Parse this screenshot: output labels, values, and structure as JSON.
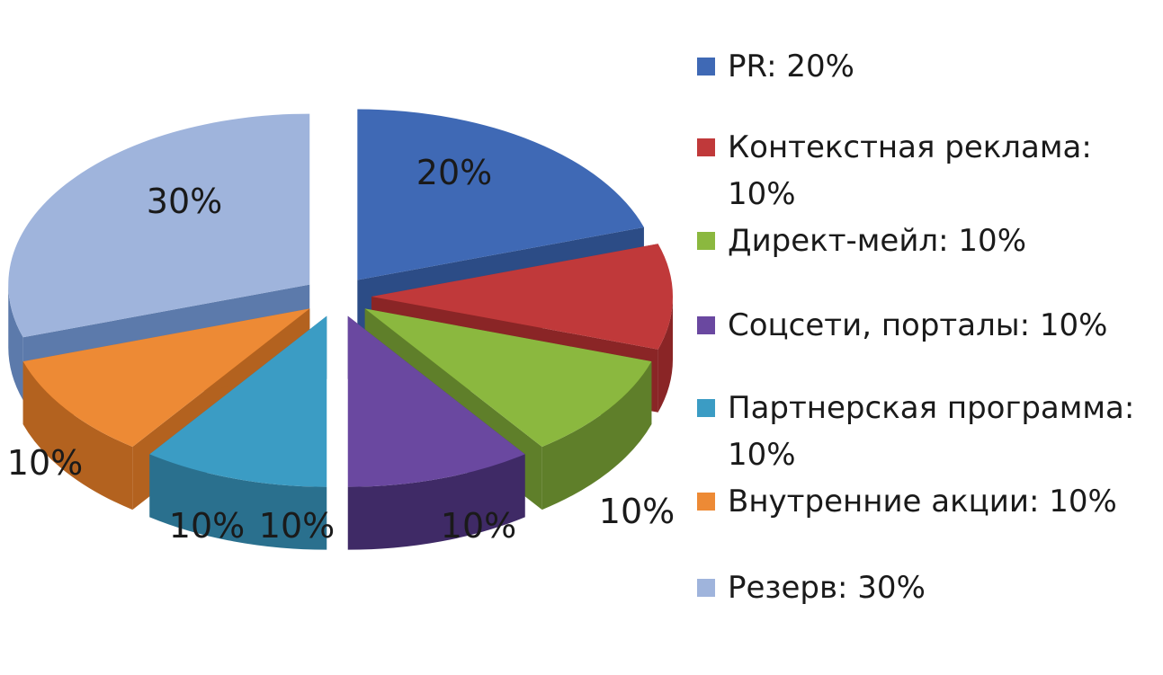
{
  "chart_data": {
    "type": "pie",
    "style": "3d-exploded",
    "slices": [
      {
        "name": "PR",
        "value": 20,
        "label": "20%",
        "legend": "PR: 20%",
        "color": "#3f69b5",
        "side": "#2c4c86"
      },
      {
        "name": "Контекстная реклама",
        "value": 10,
        "label": "10%",
        "legend": "Контекстная реклама: 10%",
        "color": "#c0393a",
        "side": "#8a2526"
      },
      {
        "name": "Директ-мейл",
        "value": 10,
        "label": "10%",
        "legend": "Директ-мейл: 10%",
        "color": "#8bb83f",
        "side": "#5f7f2a"
      },
      {
        "name": "Соцсети, порталы",
        "value": 10,
        "label": "10%",
        "legend": "Соцсети, порталы: 10%",
        "color": "#6a48a0",
        "side": "#3f2a66"
      },
      {
        "name": "Партнерская программа",
        "value": 10,
        "label": "10%",
        "legend": "Партнерская программа: 10%",
        "color": "#3b9cc4",
        "side": "#2a708e"
      },
      {
        "name": "Внутренние акции",
        "value": 10,
        "label": "10%",
        "legend": "Внутренние акции: 10%",
        "color": "#ed8a35",
        "side": "#b3621f"
      },
      {
        "name": "Резерв",
        "value": 30,
        "label": "30%",
        "legend": "Резерв: 30%",
        "color": "#9fb4dc",
        "side": "#5c7aab"
      }
    ],
    "legend_position": "right"
  }
}
